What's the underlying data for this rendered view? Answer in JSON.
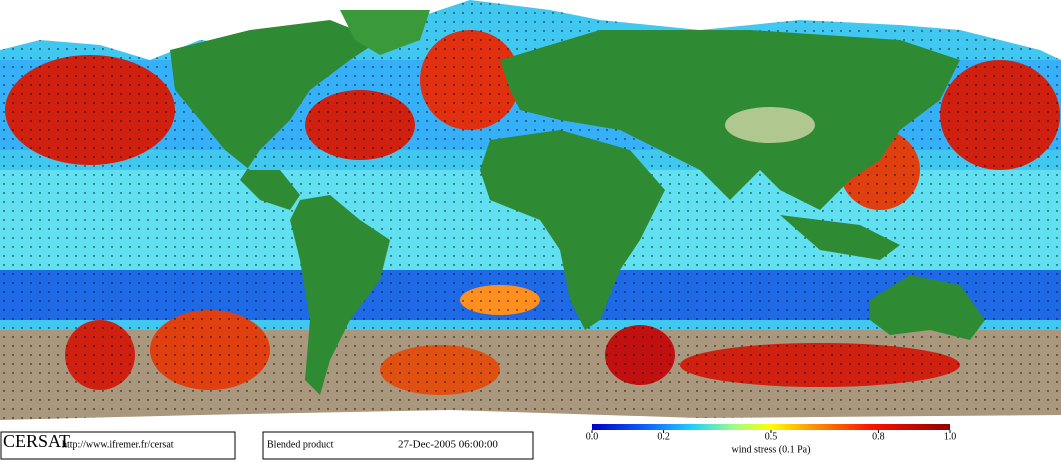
{
  "logo": "CERSAT",
  "url": "http://www.ifremer.fr/cersat",
  "product": "Blended product",
  "date": "27-Dec-2005 06:00:00",
  "colorbar": {
    "range": [
      0,
      1
    ],
    "label": "wind stress (0.1 Pa)",
    "ticks": [
      {
        "value": 0,
        "label": "0.0"
      },
      0.2,
      0.5,
      0.8,
      {
        "value": 1,
        "label": "1.0"
      }
    ]
  }
}
